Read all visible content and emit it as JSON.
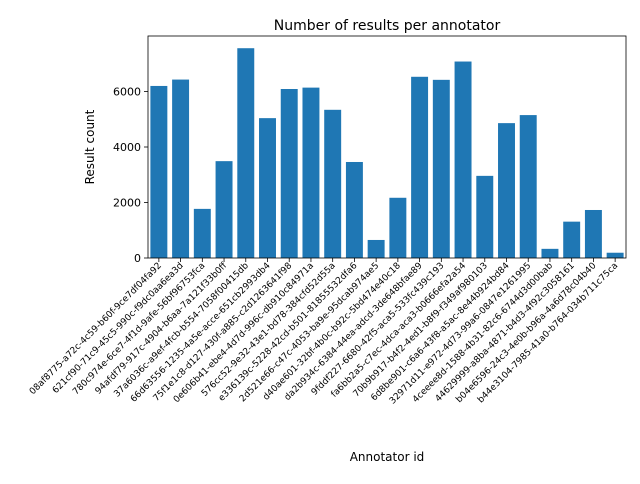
{
  "chart_data": {
    "type": "bar",
    "title": "Number of results per annotator",
    "xlabel": "Annotator id",
    "ylabel": "Result count",
    "ylim": [
      0,
      8000
    ],
    "yticks": [
      0,
      2000,
      4000,
      6000
    ],
    "grid": false,
    "bar_color": "#1f77b4",
    "categories": [
      "08af8775-a72c-4c59-b60f-9ce7df04fa92",
      "621cf90-71c9-45c5-990c-f9dc0aa6ea3d",
      "780c974e-6ce7-4f1d-9afe-56bf96753fca",
      "94afdf79-917c-4904-b6aa-7a121f33b0ff",
      "37a6036c-a9ef-4fcb-b554-7058f00415db",
      "66d63556-1235-4a5e-acce-651cb2993db4",
      "75f1e1c8-d127-430f-a885-c2d1263641f98",
      "0e606b41-ebe4-4d7d-996c-db910c84971a",
      "576cc52-9e32-43e1-bd78-384cfd52d55a",
      "e336139c-5228-42cd-b501-81855532dfa6",
      "2d521e66-c47c-4053-ba9e-95dcab974ae5",
      "d40ae601-32bf-4b0c-b92c-5bd474e40c18",
      "da2b934c-6384-44ea-adcd-3de648bfae89",
      "9fddf227-6680-42f5-aca5-533fc439c193",
      "fa6bb2a5-c7ec-4dca-aca3-b0666efa2a54",
      "70b9b917-b4f2-4ed1-b8f9-f349af980103",
      "6d8be901-c6a6-43f8-a5ac-8e44b924bd84",
      "32971d11-e972-4d73-99a6-0847e1261995",
      "4ceeee8d-1588-4b31-82c6-6744d3d00bab",
      "44629999-a8ba-4871-b4d3-4f92c3058161",
      "b04e6596-24c3-4e0b-b96a-4a6d78c04b40",
      "b44e3104-7985-41a0-b764-034b711c75ca"
    ],
    "values": [
      6200,
      6430,
      1770,
      3490,
      7560,
      5040,
      6090,
      6140,
      5340,
      3460,
      650,
      2170,
      6530,
      6420,
      7080,
      2960,
      4860,
      5150,
      330,
      1310,
      1730,
      190
    ]
  }
}
